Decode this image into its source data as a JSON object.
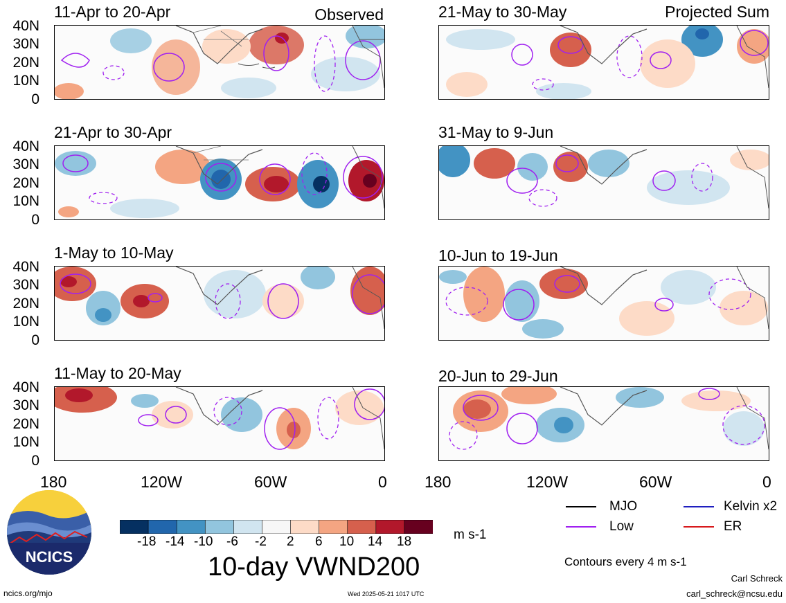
{
  "panels": [
    {
      "title": "11-Apr to 20-Apr",
      "tag": "Observed"
    },
    {
      "title": "21-Apr to 30-Apr",
      "tag": ""
    },
    {
      "title": "1-May to 10-May",
      "tag": ""
    },
    {
      "title": "11-May to 20-May",
      "tag": ""
    },
    {
      "title": "21-May to 30-May",
      "tag": "Projected Sum"
    },
    {
      "title": "31-May to 9-Jun",
      "tag": ""
    },
    {
      "title": "10-Jun to 19-Jun",
      "tag": ""
    },
    {
      "title": "20-Jun to 29-Jun",
      "tag": ""
    }
  ],
  "y_ticks": [
    "40N",
    "30N",
    "20N",
    "10N",
    "0"
  ],
  "x_ticks": [
    "180",
    "120W",
    "60W",
    "0"
  ],
  "colorbar": {
    "colors": [
      "#053061",
      "#2166ac",
      "#4393c3",
      "#92c5de",
      "#d1e5f0",
      "#f7f7f7",
      "#fddbc7",
      "#f4a582",
      "#d6604d",
      "#b2182b",
      "#67001f"
    ],
    "labels": [
      "-18",
      "-14",
      "-10",
      "-6",
      "-2",
      "2",
      "6",
      "10",
      "14",
      "18"
    ],
    "units": "m s-1"
  },
  "field_title": "10-day VWND200",
  "legend": {
    "items": [
      {
        "label": "MJO",
        "color": "#000000"
      },
      {
        "label": "Kelvin x2",
        "color": "#1f1fbf"
      },
      {
        "label": "Low",
        "color": "#a020f0"
      },
      {
        "label": "ER",
        "color": "#d7191c"
      }
    ],
    "note": "Contours every 4 m s-1"
  },
  "logo": {
    "text": "NCICS"
  },
  "footer": {
    "left": "ncics.org/mjo",
    "center": "Wed 2025-05-21 1017 UTC",
    "author": "Carl Schreck",
    "email": "carl_schreck@ncsu.edu"
  }
}
